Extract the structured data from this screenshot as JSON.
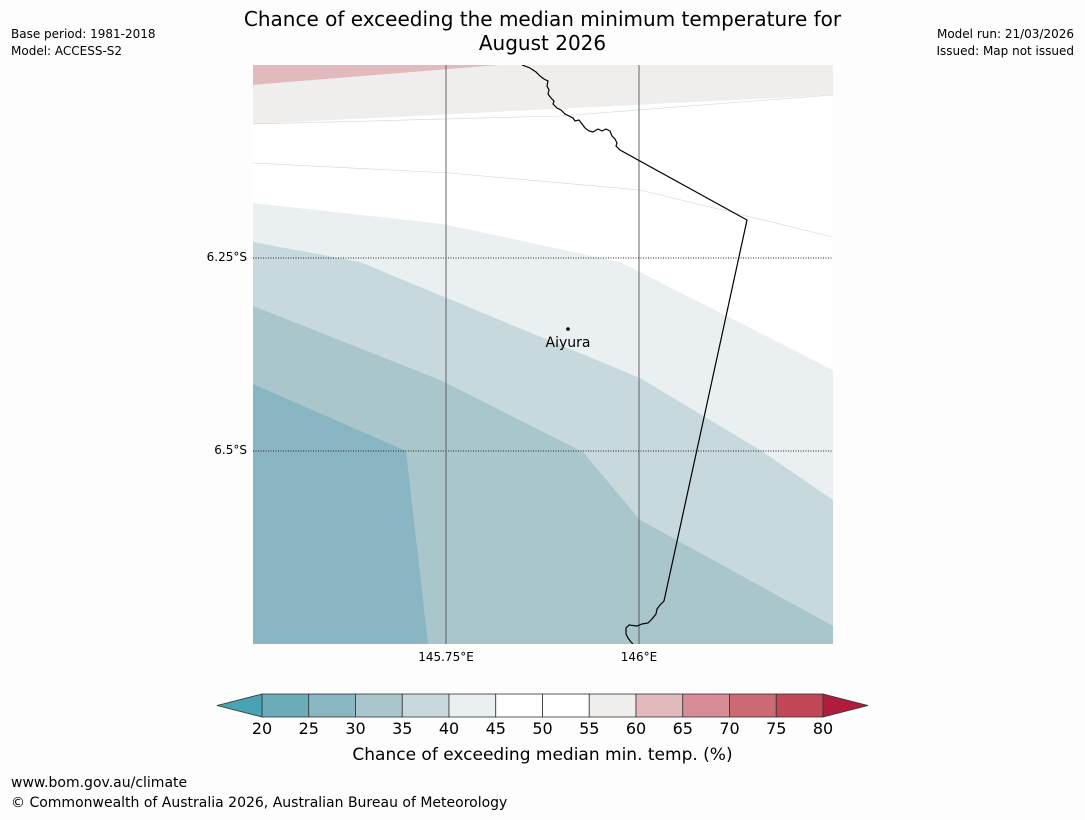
{
  "title": {
    "line1": "Chance of exceeding the median minimum temperature for",
    "line2": "August 2026"
  },
  "meta_left": {
    "base_period": "Base period: 1981-2018",
    "model": "Model: ACCESS-S2"
  },
  "meta_right": {
    "model_run": "Model run: 21/03/2026",
    "issued": "Issued: Map not issued"
  },
  "map": {
    "lat_labels": [
      "6.25°S",
      "6.5°S"
    ],
    "lon_labels": [
      "145.75°E",
      "146°E"
    ],
    "city": {
      "name": "Aiyura"
    }
  },
  "colorbar": {
    "ticks": [
      "20",
      "25",
      "30",
      "35",
      "40",
      "45",
      "50",
      "55",
      "60",
      "65",
      "70",
      "75",
      "80"
    ],
    "colors": [
      "#6aadb9",
      "#89b6c2",
      "#a8c6cc",
      "#c7d9dd",
      "#eaf0f2",
      "#ffffff",
      "#ffffff",
      "#efeeec",
      "#e2b9bd",
      "#d88c95",
      "#cc6a74",
      "#c14656"
    ],
    "under_color": "#4aa3b2",
    "over_color": "#b01d3b",
    "label": "Chance of exceeding median min. temp. (%)"
  },
  "footer": {
    "url": "www.bom.gov.au/climate",
    "copyright": "© Commonwealth of Australia 2026, Australian Bureau of Meteorology"
  }
}
